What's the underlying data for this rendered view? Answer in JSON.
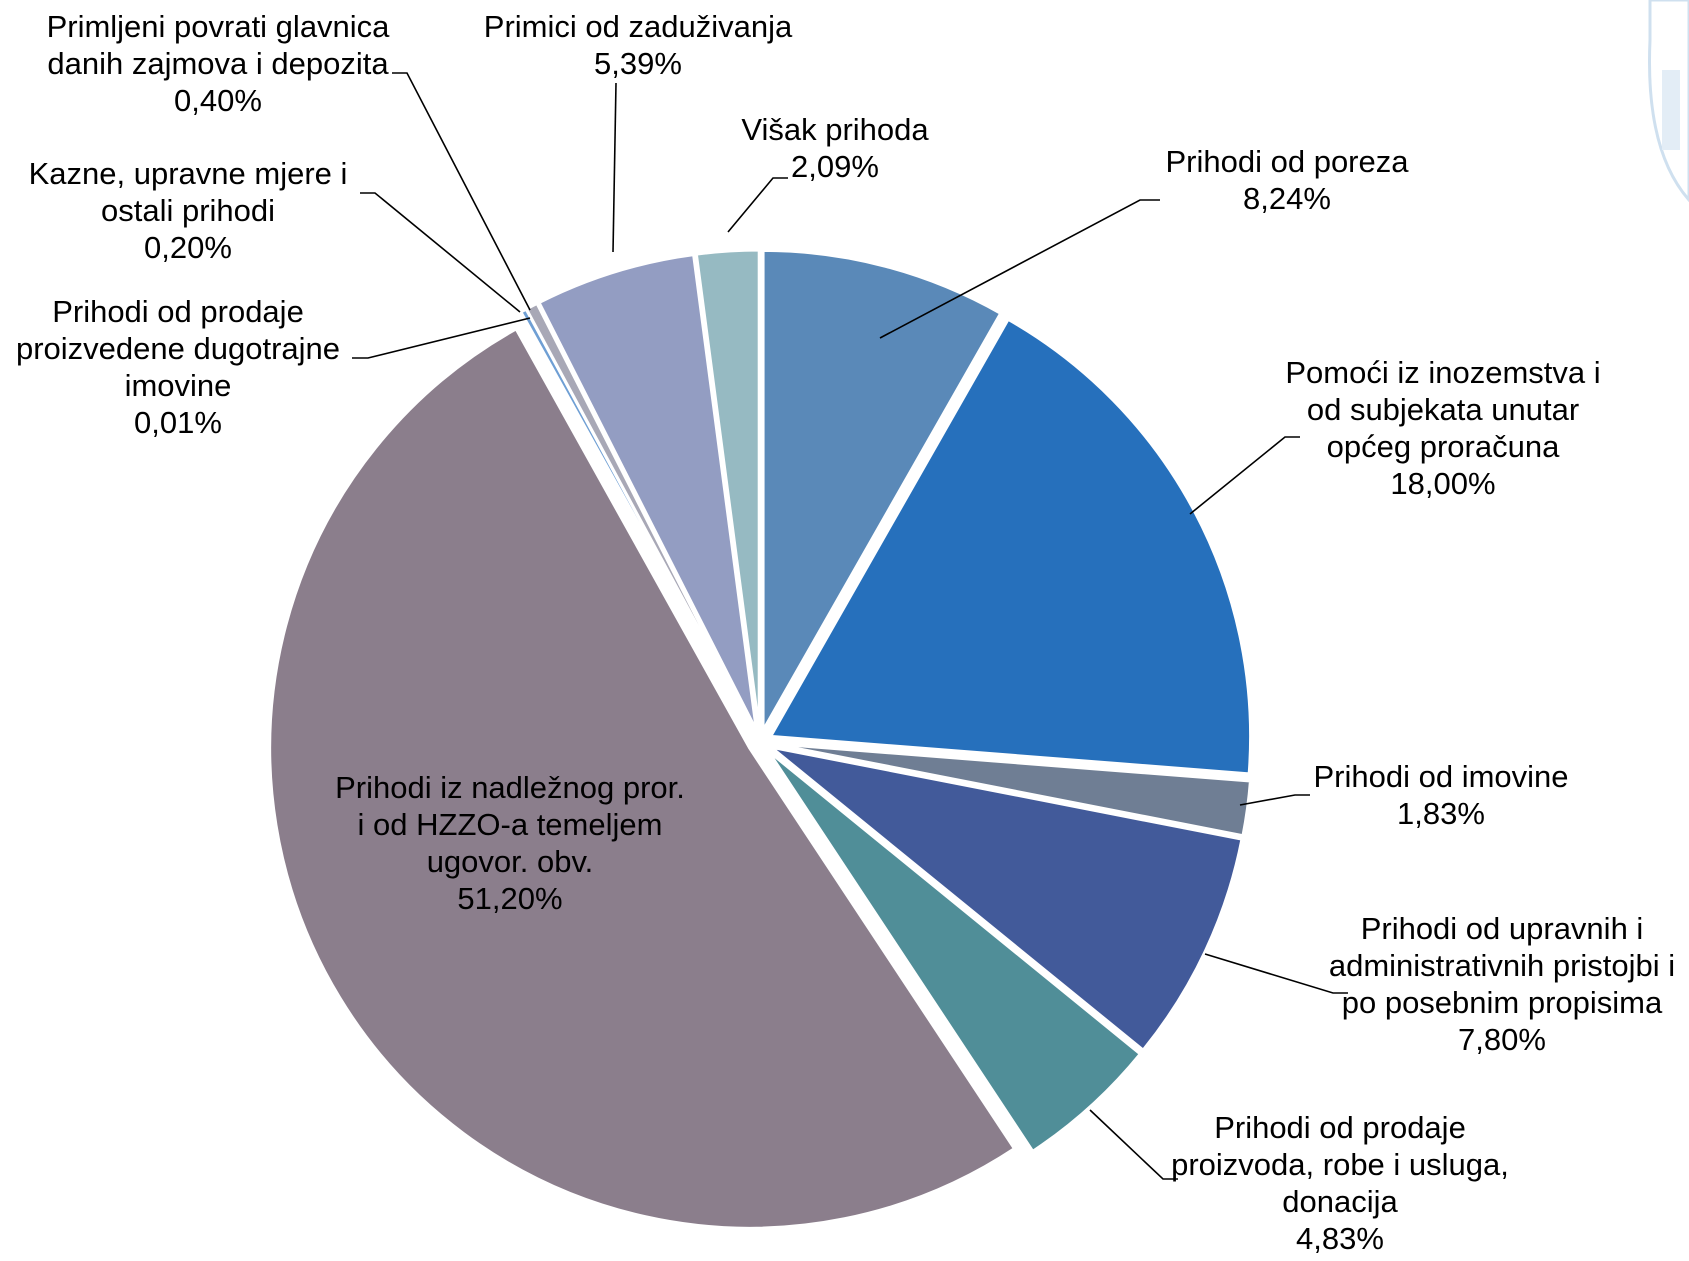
{
  "chart_data": {
    "type": "pie",
    "title": "",
    "slices": [
      {
        "lines": [
          "Prihodi od poreza"
        ],
        "value": 8.24,
        "pct": "8,24%",
        "color": "#5a89b8",
        "inside": false
      },
      {
        "lines": [
          "Pomoći iz inozemstva i",
          "od subjekata unutar",
          "općeg proračuna"
        ],
        "value": 18.0,
        "pct": "18,00%",
        "color": "#2670bc",
        "inside": false
      },
      {
        "lines": [
          "Prihodi od imovine"
        ],
        "value": 1.83,
        "pct": "1,83%",
        "color": "#6f7e94",
        "inside": false
      },
      {
        "lines": [
          "Prihodi od upravnih i",
          "administrativnih pristojbi i",
          "po posebnim propisima"
        ],
        "value": 7.8,
        "pct": "7,80%",
        "color": "#425a9a",
        "inside": false
      },
      {
        "lines": [
          "Prihodi od prodaje",
          "proizvoda, robe i usluga,",
          "donacija"
        ],
        "value": 4.83,
        "pct": "4,83%",
        "color": "#508e98",
        "inside": false
      },
      {
        "lines": [
          "Prihodi iz nadležnog pror.",
          "i od HZZO-a temeljem",
          "ugovor. obv."
        ],
        "value": 51.2,
        "pct": "51,20%",
        "color": "#8b7e8c",
        "inside": true
      },
      {
        "lines": [
          "Prihodi od prodaje",
          "proizvedene dugotrajne",
          "imovine"
        ],
        "value": 0.01,
        "pct": "0,01%",
        "color": "#8eb0d6",
        "inside": false
      },
      {
        "lines": [
          "Kazne, upravne mjere i",
          "ostali prihodi"
        ],
        "value": 0.2,
        "pct": "0,20%",
        "color": "#6f9fd4",
        "inside": false
      },
      {
        "lines": [
          "Primljeni povrati glavnica",
          "danih zajmova i depozita"
        ],
        "value": 0.4,
        "pct": "0,40%",
        "color": "#a8a8b6",
        "inside": false
      },
      {
        "lines": [
          "Primici od zaduživanja"
        ],
        "value": 5.39,
        "pct": "5,39%",
        "color": "#939dc2",
        "inside": false
      },
      {
        "lines": [
          "Višak prihoda"
        ],
        "value": 2.09,
        "pct": "2,09%",
        "color": "#96bac2",
        "inside": false
      }
    ]
  }
}
